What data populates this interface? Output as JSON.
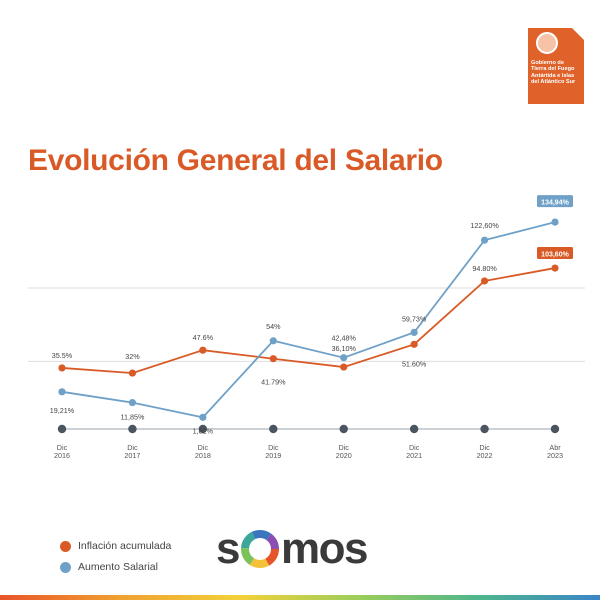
{
  "header": {
    "logo_lines": [
      "Gobierno de",
      "Tierra del Fuego",
      "Antártida e Islas",
      "del Atlántico Sur"
    ],
    "logo_color": "#e0622b"
  },
  "title": "Evolución General del Salario",
  "brand": {
    "text_left": "s",
    "text_right": "mos"
  },
  "colors": {
    "inflacion": "#d95a26",
    "salario": "#6fa1c8",
    "axis_dot": "#4a5560",
    "title": "#d95a26"
  },
  "chart_data": {
    "type": "line",
    "categories": [
      [
        "Dic",
        "2016"
      ],
      [
        "Dic",
        "2017"
      ],
      [
        "Dic",
        "2018"
      ],
      [
        "Dic",
        "2019"
      ],
      [
        "Dic",
        "2020"
      ],
      [
        "Dic",
        "2021"
      ],
      [
        "Dic",
        "2022"
      ],
      [
        "Abr",
        "2023"
      ]
    ],
    "ylim": [
      0,
      150
    ],
    "grid": true,
    "legend_position": "bottom-left",
    "series": [
      {
        "name": "Inflación acumulada",
        "color": "#d95a26",
        "values": [
          35.5,
          32,
          47.6,
          41.79,
          36.1,
          51.6,
          94.8,
          103.6
        ],
        "labels": [
          "35.5%",
          "32%",
          "47.6%",
          "41.79%",
          "36,10%",
          "51.60%",
          "94.80%",
          "103,60%"
        ]
      },
      {
        "name": "Aumento Salarial",
        "color": "#6fa1c8",
        "values": [
          19.21,
          11.85,
          1.82,
          54,
          42.48,
          59.73,
          122.6,
          134.94
        ],
        "labels": [
          "19,21%",
          "11,85%",
          "1,82%",
          "54%",
          "42,48%",
          "59,73%",
          "122,60%",
          "134,94%"
        ]
      }
    ]
  }
}
